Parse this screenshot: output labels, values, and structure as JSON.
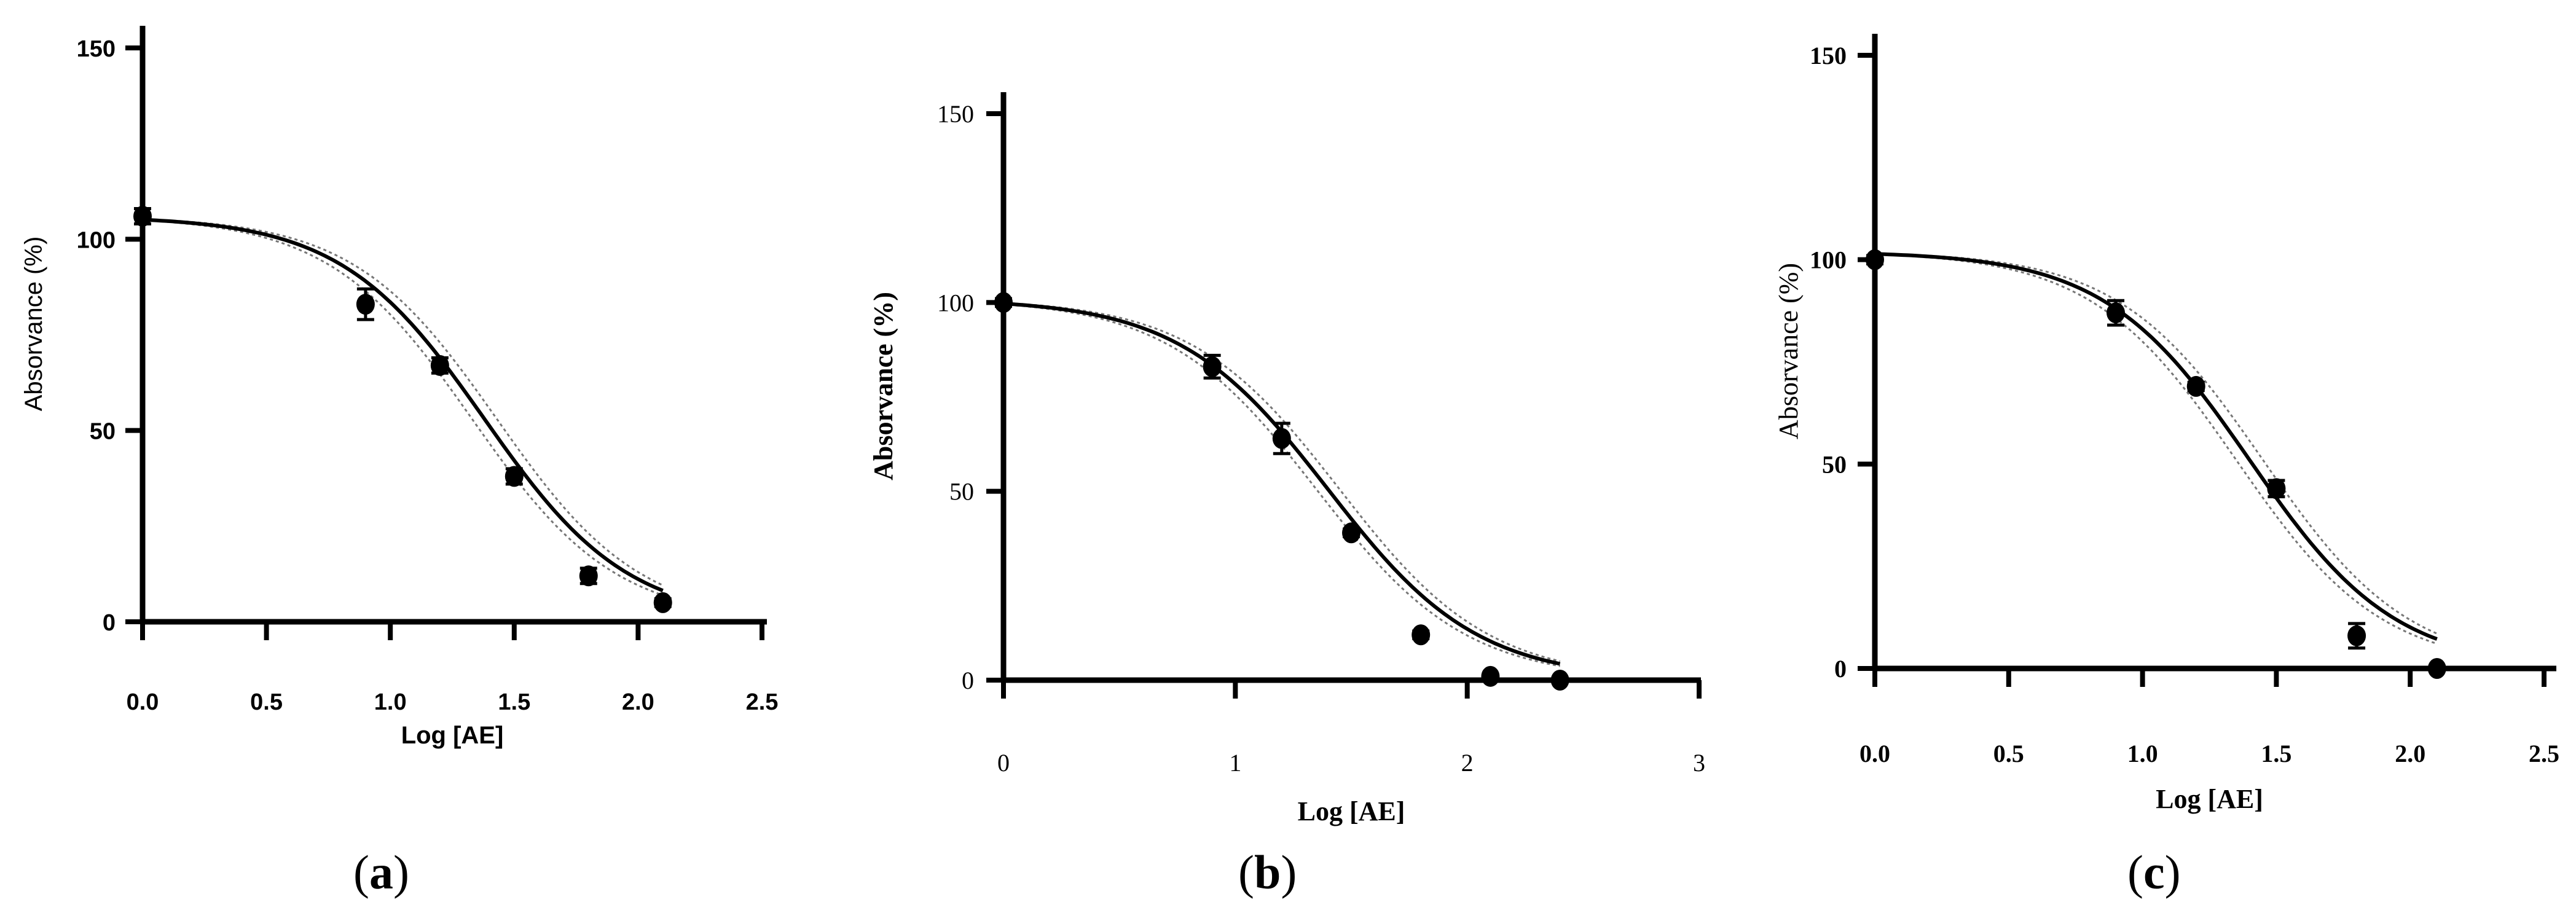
{
  "chart_data": [
    {
      "panel_label": "a",
      "type": "scatter",
      "xlabel": "Log [AE]",
      "ylabel": "Absorvance (%)",
      "xlim": [
        0,
        2.5
      ],
      "ylim": [
        0,
        150
      ],
      "x_ticks": [
        "0.0",
        "0.5",
        "1.0",
        "1.5",
        "2.0",
        "2.5"
      ],
      "y_ticks": [
        "0",
        "50",
        "100",
        "150"
      ],
      "points": [
        {
          "x": 0.0,
          "y": 106,
          "err": 2
        },
        {
          "x": 0.9,
          "y": 83,
          "err": 4
        },
        {
          "x": 1.2,
          "y": 67,
          "err": 2
        },
        {
          "x": 1.5,
          "y": 38,
          "err": 2
        },
        {
          "x": 1.8,
          "y": 12,
          "err": 2
        },
        {
          "x": 2.1,
          "y": 5,
          "err": 1
        }
      ],
      "fit": {
        "top": 106,
        "bottom": 0,
        "log_ic50": 1.38,
        "hill": 1.5,
        "x_range": [
          0,
          2.1
        ]
      }
    },
    {
      "panel_label": "b",
      "type": "scatter",
      "xlabel": "Log [AE]",
      "ylabel": "Absorvance (%)",
      "xlim": [
        0,
        3
      ],
      "ylim": [
        0,
        150
      ],
      "x_ticks": [
        "0",
        "1",
        "2",
        "3"
      ],
      "y_ticks": [
        "0",
        "50",
        "100",
        "150"
      ],
      "points": [
        {
          "x": 0.0,
          "y": 100,
          "err": 1
        },
        {
          "x": 0.9,
          "y": 83,
          "err": 3
        },
        {
          "x": 1.2,
          "y": 64,
          "err": 4
        },
        {
          "x": 1.5,
          "y": 39,
          "err": 1
        },
        {
          "x": 1.8,
          "y": 12,
          "err": 1
        },
        {
          "x": 2.1,
          "y": 1,
          "err": 0
        },
        {
          "x": 2.4,
          "y": 0,
          "err": 0
        }
      ],
      "fit": {
        "top": 101,
        "bottom": 0,
        "log_ic50": 1.4,
        "hill": 1.35,
        "x_range": [
          0,
          2.4
        ]
      }
    },
    {
      "panel_label": "c",
      "type": "scatter",
      "xlabel": "Log [AE]",
      "ylabel": "Absorvance (%)",
      "xlim": [
        0,
        2.5
      ],
      "ylim": [
        0,
        150
      ],
      "x_ticks": [
        "0.0",
        "0.5",
        "1.0",
        "1.5",
        "2.0",
        "2.5"
      ],
      "y_ticks": [
        "0",
        "50",
        "100",
        "150"
      ],
      "points": [
        {
          "x": 0.0,
          "y": 100,
          "err": 1
        },
        {
          "x": 0.9,
          "y": 87,
          "err": 3
        },
        {
          "x": 1.2,
          "y": 69,
          "err": 1
        },
        {
          "x": 1.5,
          "y": 44,
          "err": 2
        },
        {
          "x": 1.8,
          "y": 8,
          "err": 3
        },
        {
          "x": 2.1,
          "y": 0,
          "err": 0
        }
      ],
      "fit": {
        "top": 102,
        "bottom": 0,
        "log_ic50": 1.4,
        "hill": 1.6,
        "x_range": [
          0,
          2.1
        ]
      }
    }
  ]
}
